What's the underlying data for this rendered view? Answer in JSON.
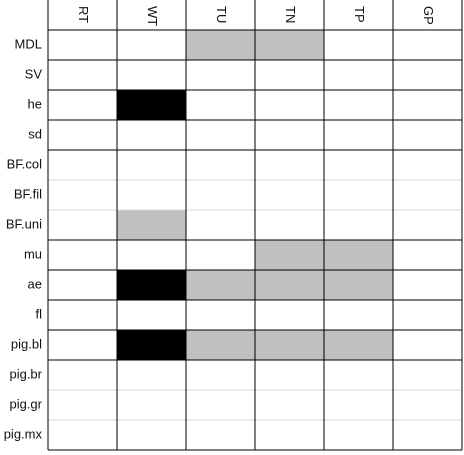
{
  "columns": [
    "RT",
    "WT",
    "TU",
    "TN",
    "TP",
    "GP"
  ],
  "rows": [
    {
      "label": "MDL",
      "cells": [
        "#ffffff",
        "#ffffff",
        "#c0c0c0",
        "#c0c0c0",
        "#ffffff",
        "#ffffff"
      ]
    },
    {
      "label": "SV",
      "cells": [
        "#ffffff",
        "#ffffff",
        "#ffffff",
        "#ffffff",
        "#ffffff",
        "#ffffff"
      ]
    },
    {
      "label": "he",
      "cells": [
        "#ffffff",
        "#000000",
        "#ffffff",
        "#ffffff",
        "#ffffff",
        "#ffffff"
      ]
    },
    {
      "label": "sd",
      "cells": [
        "#ffffff",
        "#ffffff",
        "#ffffff",
        "#ffffff",
        "#ffffff",
        "#ffffff"
      ]
    },
    {
      "label": "BF.col",
      "cells": [
        "#ffffff",
        "#ffffff",
        "#ffffff",
        "#ffffff",
        "#ffffff",
        "#ffffff"
      ]
    },
    {
      "label": "BF.fil",
      "cells": [
        "#ffffff",
        "#ffffff",
        "#ffffff",
        "#ffffff",
        "#ffffff",
        "#ffffff"
      ]
    },
    {
      "label": "BF.uni",
      "cells": [
        "#ffffff",
        "#c0c0c0",
        "#ffffff",
        "#ffffff",
        "#ffffff",
        "#ffffff"
      ]
    },
    {
      "label": "mu",
      "cells": [
        "#ffffff",
        "#ffffff",
        "#ffffff",
        "#c0c0c0",
        "#c0c0c0",
        "#ffffff"
      ]
    },
    {
      "label": "ae",
      "cells": [
        "#ffffff",
        "#000000",
        "#c0c0c0",
        "#c0c0c0",
        "#c0c0c0",
        "#ffffff"
      ]
    },
    {
      "label": "fl",
      "cells": [
        "#ffffff",
        "#ffffff",
        "#ffffff",
        "#ffffff",
        "#ffffff",
        "#ffffff"
      ]
    },
    {
      "label": "pig.bl",
      "cells": [
        "#ffffff",
        "#000000",
        "#c0c0c0",
        "#c0c0c0",
        "#c0c0c0",
        "#ffffff"
      ]
    },
    {
      "label": "pig.br",
      "cells": [
        "#ffffff",
        "#ffffff",
        "#ffffff",
        "#ffffff",
        "#ffffff",
        "#ffffff"
      ]
    },
    {
      "label": "pig.gr",
      "cells": [
        "#ffffff",
        "#ffffff",
        "#ffffff",
        "#ffffff",
        "#ffffff",
        "#ffffff"
      ]
    },
    {
      "label": "pig.mx",
      "cells": [
        "#ffffff",
        "#ffffff",
        "#ffffff",
        "#ffffff",
        "#ffffff",
        "#ffffff"
      ]
    }
  ]
}
